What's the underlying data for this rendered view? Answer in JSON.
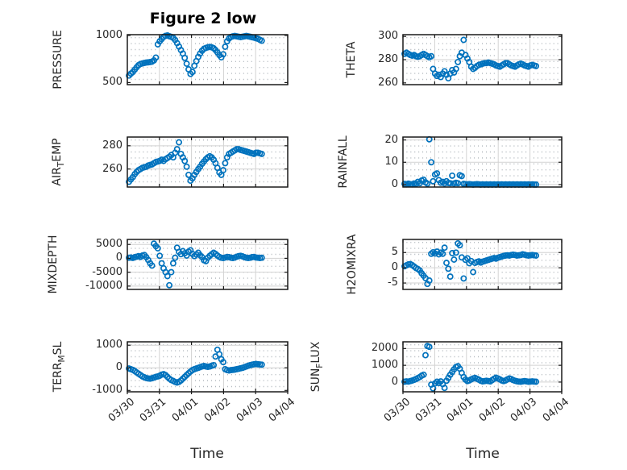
{
  "figure": {
    "colors": {
      "marker": "#0072BD",
      "axes": "#1a1a1a",
      "grid": "#d2d2d2",
      "minor_grid": "#a6adb3",
      "text": "#262626",
      "title_color": "#000000",
      "background": "#ffffff"
    }
  },
  "chart_data": {
    "type": "scatter",
    "title": "Figure 2 low",
    "x_label": "Time",
    "x_ticklabels": [
      "03/30",
      "03/31",
      "04/01",
      "04/02",
      "04/03",
      "04/04"
    ],
    "xlim_days": [
      0,
      5
    ],
    "x_days": [
      0.05,
      0.11,
      0.17,
      0.23,
      0.29,
      0.35,
      0.41,
      0.47,
      0.53,
      0.59,
      0.65,
      0.71,
      0.77,
      0.83,
      0.89,
      0.95,
      1.01,
      1.07,
      1.13,
      1.19,
      1.25,
      1.31,
      1.37,
      1.43,
      1.49,
      1.55,
      1.61,
      1.67,
      1.73,
      1.79,
      1.85,
      1.91,
      1.97,
      2.03,
      2.09,
      2.15,
      2.21,
      2.27,
      2.33,
      2.39,
      2.45,
      2.51,
      2.57,
      2.63,
      2.69,
      2.75,
      2.81,
      2.87,
      2.93,
      2.99,
      3.05,
      3.11,
      3.17,
      3.23,
      3.29,
      3.35,
      3.41,
      3.47,
      3.53,
      3.59,
      3.65,
      3.71,
      3.77,
      3.83,
      3.89,
      3.95,
      4.01,
      4.07,
      4.13,
      4.19
    ],
    "subplots": [
      {
        "name": "pressure",
        "ylabel_text": "PRESSURE",
        "ylabel_segments": [
          {
            "text": "PRESSURE",
            "sub": false
          }
        ],
        "yticks": [
          500,
          1000
        ],
        "ylim": [
          478,
          1008
        ],
        "values": [
          575,
          595,
          612,
          638,
          662,
          685,
          698,
          703,
          708,
          712,
          715,
          718,
          722,
          735,
          765,
          905,
          938,
          962,
          985,
          996,
          1000,
          992,
          985,
          975,
          952,
          918,
          882,
          845,
          808,
          762,
          700,
          640,
          592,
          612,
          678,
          728,
          772,
          808,
          838,
          858,
          868,
          874,
          878,
          874,
          864,
          845,
          820,
          792,
          768,
          800,
          880,
          938,
          968,
          984,
          990,
          994,
          990,
          986,
          982,
          986,
          990,
          994,
          990,
          986,
          981,
          976,
          970,
          964,
          954,
          944
        ]
      },
      {
        "name": "theta",
        "ylabel_text": "THETA",
        "ylabel_segments": [
          {
            "text": "THETA",
            "sub": false
          }
        ],
        "yticks": [
          260,
          280,
          300
        ],
        "ylim": [
          258.5,
          301.5
        ],
        "values": [
          285,
          286,
          285,
          284,
          283.5,
          284,
          283,
          282.5,
          283,
          284,
          285,
          284,
          283,
          282,
          283,
          272,
          268,
          266,
          267,
          265,
          268,
          270,
          267,
          264,
          268,
          271,
          269,
          272,
          278,
          283,
          286,
          297,
          284,
          281,
          278,
          274,
          272,
          273,
          274.5,
          275.5,
          276,
          276.5,
          277,
          277,
          277.5,
          277,
          276.5,
          276,
          275,
          274.5,
          274,
          275,
          276,
          277,
          277,
          276,
          275,
          274.5,
          274,
          275,
          276,
          276.5,
          276,
          275,
          274.5,
          274,
          275,
          275.5,
          275,
          274.5
        ]
      },
      {
        "name": "air-temp",
        "ylabel_text": "AIR_TEMP",
        "ylabel_segments": [
          {
            "text": "AIR",
            "sub": false
          },
          {
            "text": "T",
            "sub": true
          },
          {
            "text": "EMP",
            "sub": false
          }
        ],
        "yticks": [
          260,
          280
        ],
        "ylim": [
          244.5,
          287.5
        ],
        "values": [
          249,
          251,
          253,
          255.5,
          257.5,
          259,
          260,
          261,
          261.5,
          262,
          263,
          263.5,
          264,
          265,
          266,
          266.5,
          267,
          268,
          267,
          268.5,
          269.5,
          270.5,
          272,
          270,
          274,
          277,
          283,
          273,
          270,
          267,
          262,
          255,
          250,
          252,
          255,
          257.5,
          260,
          262,
          264.5,
          266.5,
          268.5,
          270,
          271,
          270,
          268,
          265,
          261,
          257,
          255,
          259,
          265,
          270,
          273,
          274,
          275,
          276,
          277,
          277,
          276.5,
          276,
          275.5,
          275,
          274.5,
          274,
          273.5,
          273,
          274,
          274,
          273.5,
          273
        ]
      },
      {
        "name": "rainfall",
        "ylabel_text": "RAINFALL",
        "ylabel_segments": [
          {
            "text": "RAINFALL",
            "sub": false
          }
        ],
        "yticks": [
          0,
          10,
          20
        ],
        "ylim": [
          -1.1,
          21.3
        ],
        "values": [
          0.3,
          0.1,
          0.4,
          0.2,
          0.1,
          0.5,
          0.3,
          1.2,
          0.6,
          1.8,
          2.2,
          1.0,
          0.4,
          20.3,
          10.0,
          1.5,
          4.5,
          5.0,
          2.0,
          0.8,
          1.2,
          0.5,
          1.5,
          0.7,
          0.6,
          4.0,
          0.5,
          0.8,
          0.6,
          4.2,
          3.8,
          0.3,
          0.2,
          0.1,
          0.2,
          0.1,
          0,
          0.1,
          0.2,
          0.1,
          0,
          0.1,
          0,
          0.1,
          0,
          0.1,
          0,
          0.1,
          0,
          0.1,
          0,
          0.1,
          0,
          0.1,
          0,
          0.1,
          0,
          0.1,
          0,
          0.1,
          0,
          0.1,
          0,
          0.1,
          0,
          0.1,
          0,
          0.1,
          0,
          0
        ]
      },
      {
        "name": "mixdepth",
        "ylabel_text": "MIXDEPTH",
        "ylabel_segments": [
          {
            "text": "MIXDEPTH",
            "sub": false
          }
        ],
        "yticks": [
          -10000,
          -5000,
          0,
          5000
        ],
        "ylim": [
          -11200,
          6800
        ],
        "values": [
          200,
          300,
          150,
          400,
          600,
          800,
          500,
          1000,
          1200,
          400,
          -600,
          -1800,
          -2600,
          5300,
          4400,
          3600,
          900,
          -1800,
          -3600,
          -5000,
          -6400,
          -9700,
          -5000,
          -1800,
          200,
          3800,
          2300,
          1500,
          2600,
          1800,
          1000,
          2400,
          2900,
          1600,
          800,
          1400,
          2000,
          1100,
          400,
          -700,
          -1000,
          200,
          900,
          1500,
          2000,
          1600,
          1000,
          500,
          200,
          100,
          300,
          500,
          400,
          200,
          100,
          300,
          600,
          800,
          900,
          700,
          400,
          200,
          100,
          200,
          400,
          500,
          300,
          200,
          100,
          200
        ]
      },
      {
        "name": "h2omixra",
        "ylabel_text": "H2OMIXRA",
        "ylabel_segments": [
          {
            "text": "H2OMIXRA",
            "sub": false
          }
        ],
        "yticks": [
          -5,
          0,
          5
        ],
        "ylim": [
          -7.1,
          9.3
        ],
        "values": [
          0.5,
          0.8,
          1.1,
          1.2,
          0.9,
          0.4,
          -0.1,
          -0.4,
          -0.9,
          -1.8,
          -2.6,
          -3.4,
          -5.3,
          -4.2,
          4.6,
          5.1,
          4.7,
          5.3,
          4.4,
          5.0,
          4.6,
          6.6,
          1.6,
          -0.3,
          -2.9,
          4.8,
          2.7,
          5.0,
          8.0,
          7.4,
          3.4,
          -3.5,
          2.6,
          3.1,
          1.5,
          2.2,
          -1.4,
          1.6,
          1.9,
          2.1,
          1.7,
          2.0,
          2.2,
          2.4,
          2.6,
          2.8,
          3.0,
          3.2,
          3.0,
          3.3,
          3.5,
          3.7,
          3.9,
          4.0,
          4.1,
          4.0,
          4.2,
          4.3,
          4.2,
          4.0,
          4.1,
          4.2,
          4.4,
          4.3,
          4.1,
          4.0,
          4.1,
          4.2,
          4.1,
          4.0
        ]
      },
      {
        "name": "terr-msl",
        "ylabel_text": "TERR_MSL",
        "ylabel_segments": [
          {
            "text": "TERR",
            "sub": false
          },
          {
            "text": "M",
            "sub": true
          },
          {
            "text": "SL",
            "sub": false
          }
        ],
        "yticks": [
          -1000,
          0,
          1000
        ],
        "ylim": [
          -1060,
          1150
        ],
        "values": [
          -30,
          -60,
          -90,
          -140,
          -200,
          -260,
          -320,
          -380,
          -420,
          -450,
          -470,
          -480,
          -460,
          -430,
          -400,
          -380,
          -350,
          -300,
          -280,
          -320,
          -400,
          -480,
          -540,
          -580,
          -620,
          -650,
          -620,
          -560,
          -480,
          -400,
          -320,
          -240,
          -160,
          -100,
          -60,
          -30,
          0,
          30,
          60,
          80,
          60,
          40,
          60,
          90,
          120,
          500,
          800,
          600,
          380,
          250,
          -60,
          -100,
          -120,
          -100,
          -90,
          -80,
          -60,
          -40,
          -20,
          0,
          30,
          60,
          90,
          120,
          140,
          160,
          170,
          160,
          150,
          140
        ]
      },
      {
        "name": "sun-flux",
        "ylabel_text": "SUN_FLUX",
        "ylabel_segments": [
          {
            "text": "SUN",
            "sub": false
          },
          {
            "text": "F",
            "sub": true
          },
          {
            "text": "LUX",
            "sub": false
          }
        ],
        "yticks": [
          0,
          1000,
          2000
        ],
        "ylim": [
          -580,
          2400
        ],
        "values": [
          20,
          40,
          30,
          60,
          90,
          130,
          180,
          240,
          300,
          380,
          440,
          1600,
          2150,
          2100,
          -150,
          -380,
          -80,
          20,
          -60,
          40,
          -120,
          -350,
          80,
          250,
          440,
          600,
          760,
          900,
          950,
          800,
          550,
          300,
          150,
          60,
          100,
          160,
          220,
          250,
          200,
          140,
          80,
          40,
          60,
          80,
          60,
          40,
          120,
          200,
          260,
          220,
          160,
          100,
          60,
          100,
          160,
          220,
          180,
          120,
          80,
          50,
          30,
          20,
          40,
          60,
          40,
          20,
          30,
          40,
          30,
          20
        ]
      }
    ]
  }
}
